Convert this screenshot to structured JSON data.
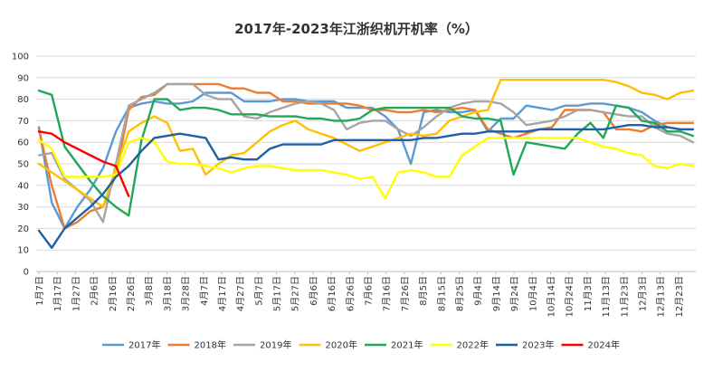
{
  "chart_data": {
    "type": "line",
    "title": "2017年-2023年江浙织机开机率（%）",
    "xlabel": "",
    "ylabel": "",
    "ylim": [
      0,
      100
    ],
    "yticks": [
      0,
      10,
      20,
      30,
      40,
      50,
      60,
      70,
      80,
      90,
      100
    ],
    "grid": true,
    "legend_position": "bottom",
    "x_tick_labels": [
      "1月7日",
      "1月17日",
      "1月27日",
      "2月6日",
      "2月16日",
      "2月26日",
      "3月8日",
      "3月18日",
      "3月28日",
      "4月7日",
      "4月17日",
      "4月27日",
      "5月7日",
      "5月17日",
      "5月27日",
      "6月6日",
      "6月16日",
      "6月26日",
      "7月6日",
      "7月16日",
      "7月26日",
      "8月5日",
      "8月15日",
      "8月25日",
      "9月4日",
      "9月14日",
      "9月24日",
      "10月4日",
      "10月14日",
      "10月24日",
      "11月3日",
      "11月13日",
      "11月23日",
      "12月3日",
      "12月13日",
      "12月23日"
    ],
    "x_unit": "week",
    "x_range": [
      1,
      52
    ],
    "series": [
      {
        "name": "2017年",
        "color": "#5b9bd5",
        "x": [
          1,
          2,
          3,
          4,
          5,
          6,
          7,
          8,
          9,
          10,
          11,
          12,
          13,
          14,
          15,
          16,
          17,
          18,
          19,
          20,
          21,
          22,
          23,
          24,
          25,
          26,
          27,
          28,
          29,
          30,
          31,
          32,
          33,
          34,
          35,
          36,
          37,
          38,
          39,
          40,
          41,
          42,
          43,
          44,
          45,
          46,
          47,
          48,
          49,
          50,
          51,
          52
        ],
        "values": [
          67,
          32,
          20,
          30,
          38,
          48,
          65,
          76,
          78,
          79,
          78,
          78,
          79,
          83,
          83,
          83,
          79,
          79,
          79,
          80,
          80,
          79,
          79,
          79,
          76,
          76,
          76,
          72,
          66,
          50,
          74,
          75,
          74,
          74,
          75,
          65,
          71,
          71,
          77,
          76,
          75,
          77,
          77,
          78,
          78,
          77,
          76,
          74,
          70,
          67,
          66,
          66
        ]
      },
      {
        "name": "2018年",
        "color": "#ed7d31",
        "x": [
          1,
          2,
          3,
          4,
          5,
          6,
          7,
          8,
          9,
          10,
          11,
          12,
          13,
          14,
          15,
          16,
          17,
          18,
          19,
          20,
          21,
          22,
          23,
          24,
          25,
          26,
          27,
          28,
          29,
          30,
          31,
          32,
          33,
          34,
          35,
          36,
          37,
          38,
          39,
          40,
          41,
          42,
          43,
          44,
          45,
          46,
          47,
          48,
          49,
          50,
          51,
          52
        ],
        "values": [
          66,
          40,
          20,
          23,
          28,
          30,
          45,
          75,
          81,
          82,
          87,
          87,
          87,
          87,
          87,
          85,
          85,
          83,
          83,
          79,
          79,
          78,
          78,
          78,
          78,
          77,
          75,
          75,
          74,
          74,
          75,
          74,
          75,
          76,
          75,
          66,
          64,
          62,
          64,
          66,
          67,
          75,
          75,
          75,
          74,
          66,
          66,
          65,
          68,
          69,
          69,
          69
        ]
      },
      {
        "name": "2019年",
        "color": "#a5a5a5",
        "x": [
          1,
          2,
          3,
          4,
          5,
          6,
          7,
          8,
          9,
          10,
          11,
          12,
          13,
          14,
          15,
          16,
          17,
          18,
          19,
          20,
          21,
          22,
          23,
          24,
          25,
          26,
          27,
          28,
          29,
          30,
          31,
          32,
          33,
          34,
          35,
          36,
          37,
          38,
          39,
          40,
          41,
          42,
          43,
          44,
          45,
          46,
          47,
          48,
          49,
          50,
          51,
          52
        ],
        "values": [
          54,
          55,
          43,
          38,
          33,
          23,
          50,
          77,
          80,
          83,
          87,
          87,
          87,
          82,
          80,
          80,
          72,
          71,
          74,
          76,
          78,
          79,
          78,
          75,
          66,
          69,
          70,
          70,
          66,
          63,
          67,
          72,
          76,
          78,
          79,
          79,
          78,
          74,
          68,
          69,
          70,
          72,
          75,
          75,
          74,
          73,
          72,
          72,
          67,
          64,
          63,
          60
        ]
      },
      {
        "name": "2020年",
        "color": "#ffc000",
        "x": [
          1,
          2,
          3,
          4,
          5,
          6,
          7,
          8,
          9,
          10,
          11,
          12,
          13,
          14,
          15,
          16,
          17,
          18,
          19,
          20,
          21,
          22,
          23,
          24,
          25,
          26,
          27,
          28,
          29,
          30,
          31,
          32,
          33,
          34,
          35,
          36,
          37,
          38,
          39,
          40,
          41,
          42,
          43,
          44,
          45,
          46,
          47,
          48,
          49,
          50,
          51,
          52
        ],
        "values": [
          50,
          46,
          42,
          38,
          34,
          30,
          48,
          65,
          69,
          72,
          69,
          56,
          57,
          45,
          50,
          54,
          55,
          60,
          65,
          68,
          70,
          66,
          64,
          62,
          59,
          56,
          58,
          60,
          62,
          64,
          63,
          64,
          70,
          72,
          74,
          75,
          89,
          89,
          89,
          89,
          89,
          89,
          89,
          89,
          89,
          88,
          86,
          83,
          82,
          80,
          83,
          84
        ]
      },
      {
        "name": "2021年",
        "color": "#21a757",
        "x": [
          1,
          2,
          3,
          4,
          5,
          6,
          7,
          8,
          9,
          10,
          11,
          12,
          13,
          14,
          15,
          16,
          17,
          18,
          19,
          20,
          21,
          22,
          23,
          24,
          25,
          26,
          27,
          28,
          29,
          30,
          31,
          32,
          33,
          34,
          35,
          36,
          37,
          38,
          39,
          40,
          41,
          42,
          43,
          44,
          45,
          46,
          47,
          48,
          49,
          50,
          51,
          52
        ],
        "values": [
          84,
          82,
          58,
          50,
          42,
          35,
          30,
          26,
          61,
          80,
          80,
          75,
          76,
          76,
          75,
          73,
          73,
          73,
          72,
          72,
          72,
          71,
          71,
          70,
          70,
          71,
          75,
          76,
          76,
          76,
          76,
          76,
          76,
          72,
          71,
          71,
          70,
          45,
          60,
          59,
          58,
          57,
          64,
          69,
          62,
          77,
          76,
          70,
          69,
          65,
          65,
          63
        ]
      },
      {
        "name": "2022年",
        "color": "#ffff00",
        "x": [
          1,
          2,
          3,
          4,
          5,
          6,
          7,
          8,
          9,
          10,
          11,
          12,
          13,
          14,
          15,
          16,
          17,
          18,
          19,
          20,
          21,
          22,
          23,
          24,
          25,
          26,
          27,
          28,
          29,
          30,
          31,
          32,
          33,
          34,
          35,
          36,
          37,
          38,
          39,
          40,
          41,
          42,
          43,
          44,
          45,
          46,
          47,
          48,
          49,
          50,
          51,
          52
        ],
        "values": [
          61,
          57,
          44,
          44,
          44,
          44,
          45,
          60,
          62,
          60,
          51,
          50,
          50,
          49,
          48,
          46,
          48,
          49,
          49,
          48,
          47,
          47,
          47,
          46,
          45,
          43,
          44,
          34,
          46,
          47,
          46,
          44,
          44,
          54,
          58,
          62,
          62,
          62,
          62,
          62,
          62,
          62,
          62,
          60,
          58,
          57,
          55,
          54,
          49,
          48,
          50,
          49
        ]
      },
      {
        "name": "2023年",
        "color": "#1f5fa8",
        "x": [
          1,
          2,
          3,
          4,
          5,
          6,
          7,
          8,
          9,
          10,
          11,
          12,
          13,
          14,
          15,
          16,
          17,
          18,
          19,
          20,
          21,
          22,
          23,
          24,
          25,
          26,
          27,
          28,
          29,
          30,
          31,
          32,
          33,
          34,
          35,
          36,
          37,
          38,
          39,
          40,
          41,
          42,
          43,
          44,
          45,
          46,
          47,
          48,
          49,
          50,
          51,
          52
        ],
        "values": [
          19,
          11,
          20,
          25,
          30,
          36,
          44,
          49,
          56,
          62,
          63,
          64,
          63,
          62,
          52,
          53,
          52,
          52,
          57,
          59,
          59,
          59,
          59,
          61,
          61,
          61,
          61,
          61,
          61,
          61,
          62,
          62,
          63,
          64,
          64,
          65,
          65,
          65,
          65,
          66,
          66,
          66,
          66,
          66,
          66,
          67,
          68,
          68,
          67,
          67,
          66,
          66
        ]
      },
      {
        "name": "2024年",
        "color": "#ff0000",
        "x": [
          1,
          2,
          3,
          4,
          5,
          6,
          7,
          8
        ],
        "values": [
          65,
          64,
          60,
          57,
          54,
          51,
          49,
          35
        ]
      }
    ]
  }
}
